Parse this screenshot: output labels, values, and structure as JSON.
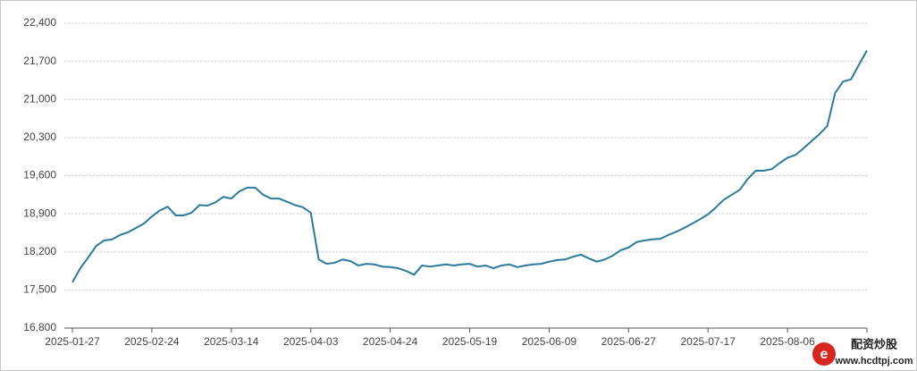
{
  "chart_data": {
    "type": "line",
    "categories": [
      "2025-01-27",
      null,
      null,
      null,
      null,
      null,
      null,
      null,
      null,
      null,
      "2025-02-24",
      null,
      null,
      null,
      null,
      null,
      null,
      null,
      null,
      null,
      "2025-03-14",
      null,
      null,
      null,
      null,
      null,
      null,
      null,
      null,
      null,
      "2025-04-03",
      null,
      null,
      null,
      null,
      null,
      null,
      null,
      null,
      null,
      "2025-04-24",
      null,
      null,
      null,
      null,
      null,
      null,
      null,
      null,
      null,
      "2025-05-19",
      null,
      null,
      null,
      null,
      null,
      null,
      null,
      null,
      null,
      "2025-06-09",
      null,
      null,
      null,
      null,
      null,
      null,
      null,
      null,
      null,
      "2025-06-27",
      null,
      null,
      null,
      null,
      null,
      null,
      null,
      null,
      null,
      "2025-07-17",
      null,
      null,
      null,
      null,
      null,
      null,
      null,
      null,
      null,
      "2025-08-06",
      null,
      null,
      null,
      null,
      null,
      null,
      null,
      null,
      null,
      null
    ],
    "series": [
      {
        "color": "#2b7a9e",
        "values": [
          17640,
          17900,
          18100,
          18310,
          18410,
          18430,
          18510,
          18560,
          18640,
          18720,
          18850,
          18960,
          19030,
          18870,
          18870,
          18920,
          19060,
          19050,
          19110,
          19210,
          19180,
          19310,
          19380,
          19380,
          19250,
          19180,
          19180,
          19120,
          19060,
          19020,
          18920,
          18060,
          17980,
          18000,
          18060,
          18030,
          17950,
          17980,
          17970,
          17930,
          17920,
          17900,
          17850,
          17780,
          17950,
          17930,
          17950,
          17970,
          17950,
          17970,
          17980,
          17930,
          17950,
          17900,
          17950,
          17970,
          17920,
          17950,
          17970,
          17980,
          18020,
          18050,
          18060,
          18110,
          18150,
          18080,
          18020,
          18060,
          18130,
          18230,
          18280,
          18380,
          18410,
          18430,
          18440,
          18510,
          18570,
          18640,
          18720,
          18800,
          18890,
          19020,
          19160,
          19250,
          19340,
          19540,
          19690,
          19690,
          19720,
          19830,
          19930,
          19980,
          20100,
          20230,
          20360,
          20510,
          21120,
          21330,
          21370,
          21640,
          21900
        ]
      }
    ],
    "ylim": [
      16800,
      22400
    ],
    "yticks": [
      {
        "value": 16800,
        "label": "16,800"
      },
      {
        "value": 17500,
        "label": "17,500"
      },
      {
        "value": 18200,
        "label": "18,200"
      },
      {
        "value": 18900,
        "label": "18,900"
      },
      {
        "value": 19600,
        "label": "19,600"
      },
      {
        "value": 20300,
        "label": "20,300"
      },
      {
        "value": 21000,
        "label": "21,000"
      },
      {
        "value": 21700,
        "label": "21,700"
      },
      {
        "value": 22400,
        "label": "22,400"
      }
    ],
    "grid": true
  },
  "watermark": {
    "title": "配资炒股",
    "url": "www.hcdtpj.com"
  }
}
